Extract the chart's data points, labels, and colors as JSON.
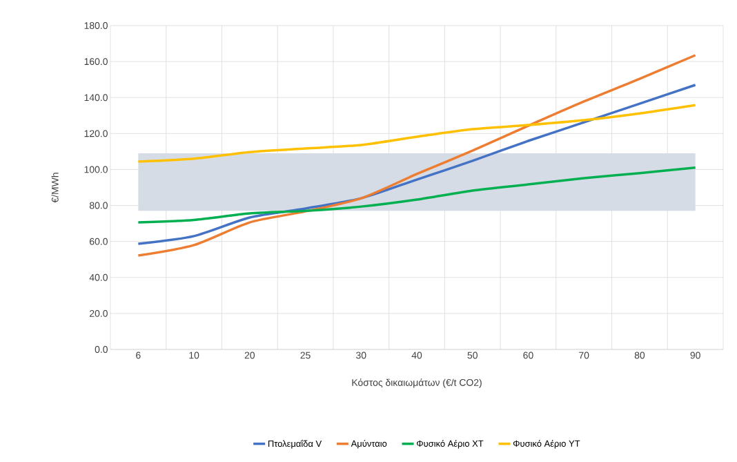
{
  "chart_data": {
    "type": "line",
    "xlabel": "Κόστος δικαιωμάτων (€/t CO2)",
    "ylabel": "€/MWh",
    "categories": [
      "6",
      "10",
      "20",
      "25",
      "30",
      "40",
      "50",
      "60",
      "70",
      "80",
      "90"
    ],
    "series": [
      {
        "name": "Πτολεμαΐδα V",
        "color": "#4472c4",
        "values": [
          58.7,
          63,
          73.3,
          78.3,
          84,
          94.4,
          104.8,
          115.9,
          126.2,
          136.6,
          147
        ]
      },
      {
        "name": "Αμύνταιο",
        "color": "#ed7d31",
        "values": [
          52.2,
          58,
          70.6,
          76.7,
          84,
          97.5,
          110.5,
          124.3,
          137.8,
          150.4,
          163.5
        ]
      },
      {
        "name": "Φυσικό Αέριο ΧΤ",
        "color": "#00b050",
        "values": [
          70.6,
          72,
          75.6,
          77,
          79.4,
          83.3,
          88.3,
          91.7,
          95.2,
          98,
          101
        ]
      },
      {
        "name": "Φυσικό Αέριο ΥΤ",
        "color": "#ffc000",
        "values": [
          104.4,
          106,
          109.7,
          111.7,
          113.6,
          118.2,
          122.4,
          124.7,
          127.4,
          131.2,
          135.8
        ]
      }
    ],
    "ylim": [
      0,
      180
    ],
    "yticks": [
      {
        "value": 0,
        "label": "0.0"
      },
      {
        "value": 20,
        "label": "20.0"
      },
      {
        "value": 40,
        "label": "40.0"
      },
      {
        "value": 60,
        "label": "60.0"
      },
      {
        "value": 80,
        "label": "80.0"
      },
      {
        "value": 100,
        "label": "100.0"
      },
      {
        "value": 120,
        "label": "120.0"
      },
      {
        "value": 140,
        "label": "140.0"
      },
      {
        "value": 160,
        "label": "160.0"
      },
      {
        "value": 180,
        "label": "180.0"
      }
    ],
    "bands": [
      {
        "axis": "y",
        "from": 77,
        "to": 109,
        "color": "#d6dce5"
      }
    ],
    "grid": true,
    "legend": "bottom",
    "marker": "none",
    "line_style": "solid"
  }
}
